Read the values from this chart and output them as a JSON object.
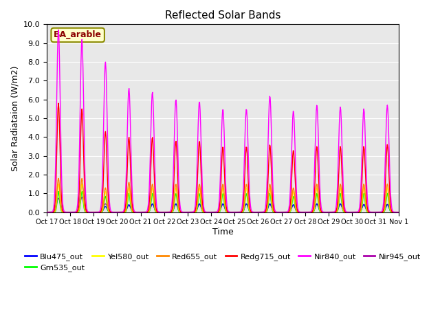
{
  "title": "Reflected Solar Bands",
  "xlabel": "Time",
  "ylabel": "Solar Radiataion (W/m2)",
  "ylim": [
    0,
    10.0
  ],
  "annotation": "BA_arable",
  "xtick_labels": [
    "Oct 17",
    "Oct 18",
    "Oct 19",
    "Oct 20",
    "Oct 21",
    "Oct 22",
    "Oct 23",
    "Oct 24",
    "Oct 25",
    "Oct 26",
    "Oct 27",
    "Oct 28",
    "Oct 29",
    "Oct 30",
    "Oct 31",
    "Nov 1"
  ],
  "n_days": 15,
  "background_color": "#e8e8e8",
  "grid_color": "#ffffff",
  "linewidth": 1.0,
  "nir840_peaks": [
    9.7,
    9.2,
    8.0,
    6.6,
    6.4,
    6.0,
    5.9,
    5.5,
    5.5,
    6.2,
    5.4,
    5.7,
    5.6,
    5.5,
    5.7
  ],
  "nir945_peaks": [
    0.75,
    0.8,
    0.45,
    0.38,
    0.42,
    0.42,
    0.42,
    0.42,
    0.42,
    0.42,
    0.38,
    0.42,
    0.42,
    0.42,
    0.42
  ],
  "redg_peaks": [
    5.8,
    5.5,
    4.3,
    4.0,
    4.0,
    3.8,
    3.8,
    3.5,
    3.5,
    3.6,
    3.3,
    3.5,
    3.5,
    3.5,
    3.6
  ],
  "red_peaks": [
    1.8,
    1.8,
    1.3,
    1.6,
    1.5,
    1.5,
    1.5,
    1.5,
    1.5,
    1.5,
    1.3,
    1.5,
    1.5,
    1.5,
    1.5
  ],
  "yel_peaks": [
    1.5,
    1.5,
    1.1,
    1.3,
    1.3,
    1.3,
    1.3,
    1.3,
    1.3,
    1.3,
    1.1,
    1.3,
    1.3,
    1.3,
    1.3
  ],
  "grn_peaks": [
    1.1,
    1.1,
    0.85,
    1.0,
    1.0,
    1.0,
    1.0,
    1.0,
    1.0,
    1.0,
    0.85,
    1.0,
    1.0,
    1.0,
    1.0
  ],
  "blu_peaks": [
    1.1,
    1.5,
    0.3,
    0.4,
    0.45,
    0.45,
    0.45,
    0.45,
    0.45,
    0.45,
    0.4,
    0.45,
    0.45,
    0.4,
    0.4
  ]
}
